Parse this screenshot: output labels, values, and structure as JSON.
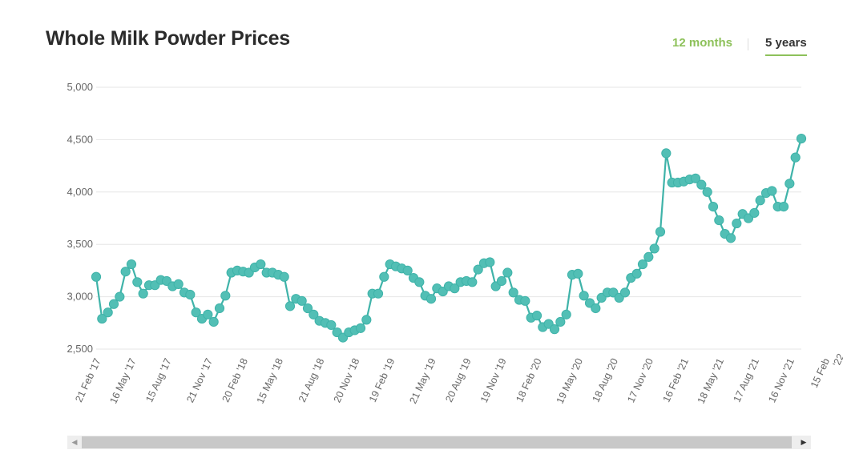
{
  "page": {
    "title": "Whole Milk Powder Prices",
    "tabs": [
      {
        "label": "12 months",
        "active": false
      },
      {
        "label": "5 years",
        "active": true
      }
    ]
  },
  "colors": {
    "series": "#3fb3a9",
    "series_marker": "#52bfb5",
    "accent": "#8dc15a",
    "grid": "#e6e6e6",
    "axis_text": "#666666"
  },
  "chart_data": {
    "type": "line",
    "title": "Whole Milk Powder Prices",
    "xlabel": "",
    "ylabel": "",
    "ylim": [
      2500,
      5000
    ],
    "y_ticks": [
      {
        "value": 2500,
        "label": "2,500"
      },
      {
        "value": 3000,
        "label": "3,000"
      },
      {
        "value": 3500,
        "label": "3,500"
      },
      {
        "value": 4000,
        "label": "4,000"
      },
      {
        "value": 4500,
        "label": "4,500"
      },
      {
        "value": 5000,
        "label": "5,000"
      }
    ],
    "x_ticks": [
      {
        "label": "21 Feb '17",
        "index": 0
      },
      {
        "label": "16 May '17",
        "index": 6
      },
      {
        "label": "15 Aug '17",
        "index": 12
      },
      {
        "label": "21 Nov '17",
        "index": 19
      },
      {
        "label": "20 Feb '18",
        "index": 25
      },
      {
        "label": "15 May '18",
        "index": 31
      },
      {
        "label": "21 Aug '18",
        "index": 38
      },
      {
        "label": "20 Nov '18",
        "index": 44
      },
      {
        "label": "19 Feb '19",
        "index": 50
      },
      {
        "label": "21 May '19",
        "index": 57
      },
      {
        "label": "20 Aug '19",
        "index": 63
      },
      {
        "label": "19 Nov '19",
        "index": 69
      },
      {
        "label": "18 Feb '20",
        "index": 75
      },
      {
        "label": "19 May '20",
        "index": 82
      },
      {
        "label": "18 Aug '20",
        "index": 88
      },
      {
        "label": "17 Nov '20",
        "index": 94
      },
      {
        "label": "16 Feb '21",
        "index": 100
      },
      {
        "label": "18 May '21",
        "index": 106
      },
      {
        "label": "17 Aug '21",
        "index": 112
      },
      {
        "label": "16 Nov '21",
        "index": 118
      },
      {
        "label": "15 Feb '22",
        "index": 124
      }
    ],
    "grid": true,
    "legend": "none",
    "series": [
      {
        "values": [
          3190,
          2790,
          2850,
          2930,
          3000,
          3240,
          3310,
          3140,
          3030,
          3110,
          3110,
          3160,
          3150,
          3100,
          3120,
          3040,
          3020,
          2850,
          2790,
          2830,
          2760,
          2890,
          3010,
          3230,
          3250,
          3240,
          3230,
          3280,
          3310,
          3230,
          3230,
          3210,
          3190,
          2910,
          2980,
          2960,
          2890,
          2830,
          2770,
          2750,
          2730,
          2660,
          2610,
          2660,
          2680,
          2700,
          2780,
          3030,
          3030,
          3190,
          3310,
          3290,
          3270,
          3250,
          3180,
          3140,
          3010,
          2980,
          3080,
          3050,
          3100,
          3080,
          3140,
          3150,
          3140,
          3260,
          3320,
          3330,
          3100,
          3150,
          3230,
          3040,
          2970,
          2960,
          2800,
          2820,
          2710,
          2740,
          2690,
          2760,
          2830,
          3210,
          3220,
          3010,
          2940,
          2890,
          2990,
          3040,
          3040,
          2990,
          3040,
          3180,
          3220,
          3310,
          3380,
          3460,
          3620,
          4370,
          4090,
          4090,
          4100,
          4120,
          4130,
          4070,
          4000,
          3860,
          3730,
          3600,
          3560,
          3700,
          3790,
          3750,
          3800,
          3920,
          3990,
          4010,
          3860,
          3860,
          4080,
          4330,
          4510
        ]
      }
    ]
  },
  "scrollbar": {
    "left_arrow": "◀",
    "right_arrow": "▶"
  }
}
